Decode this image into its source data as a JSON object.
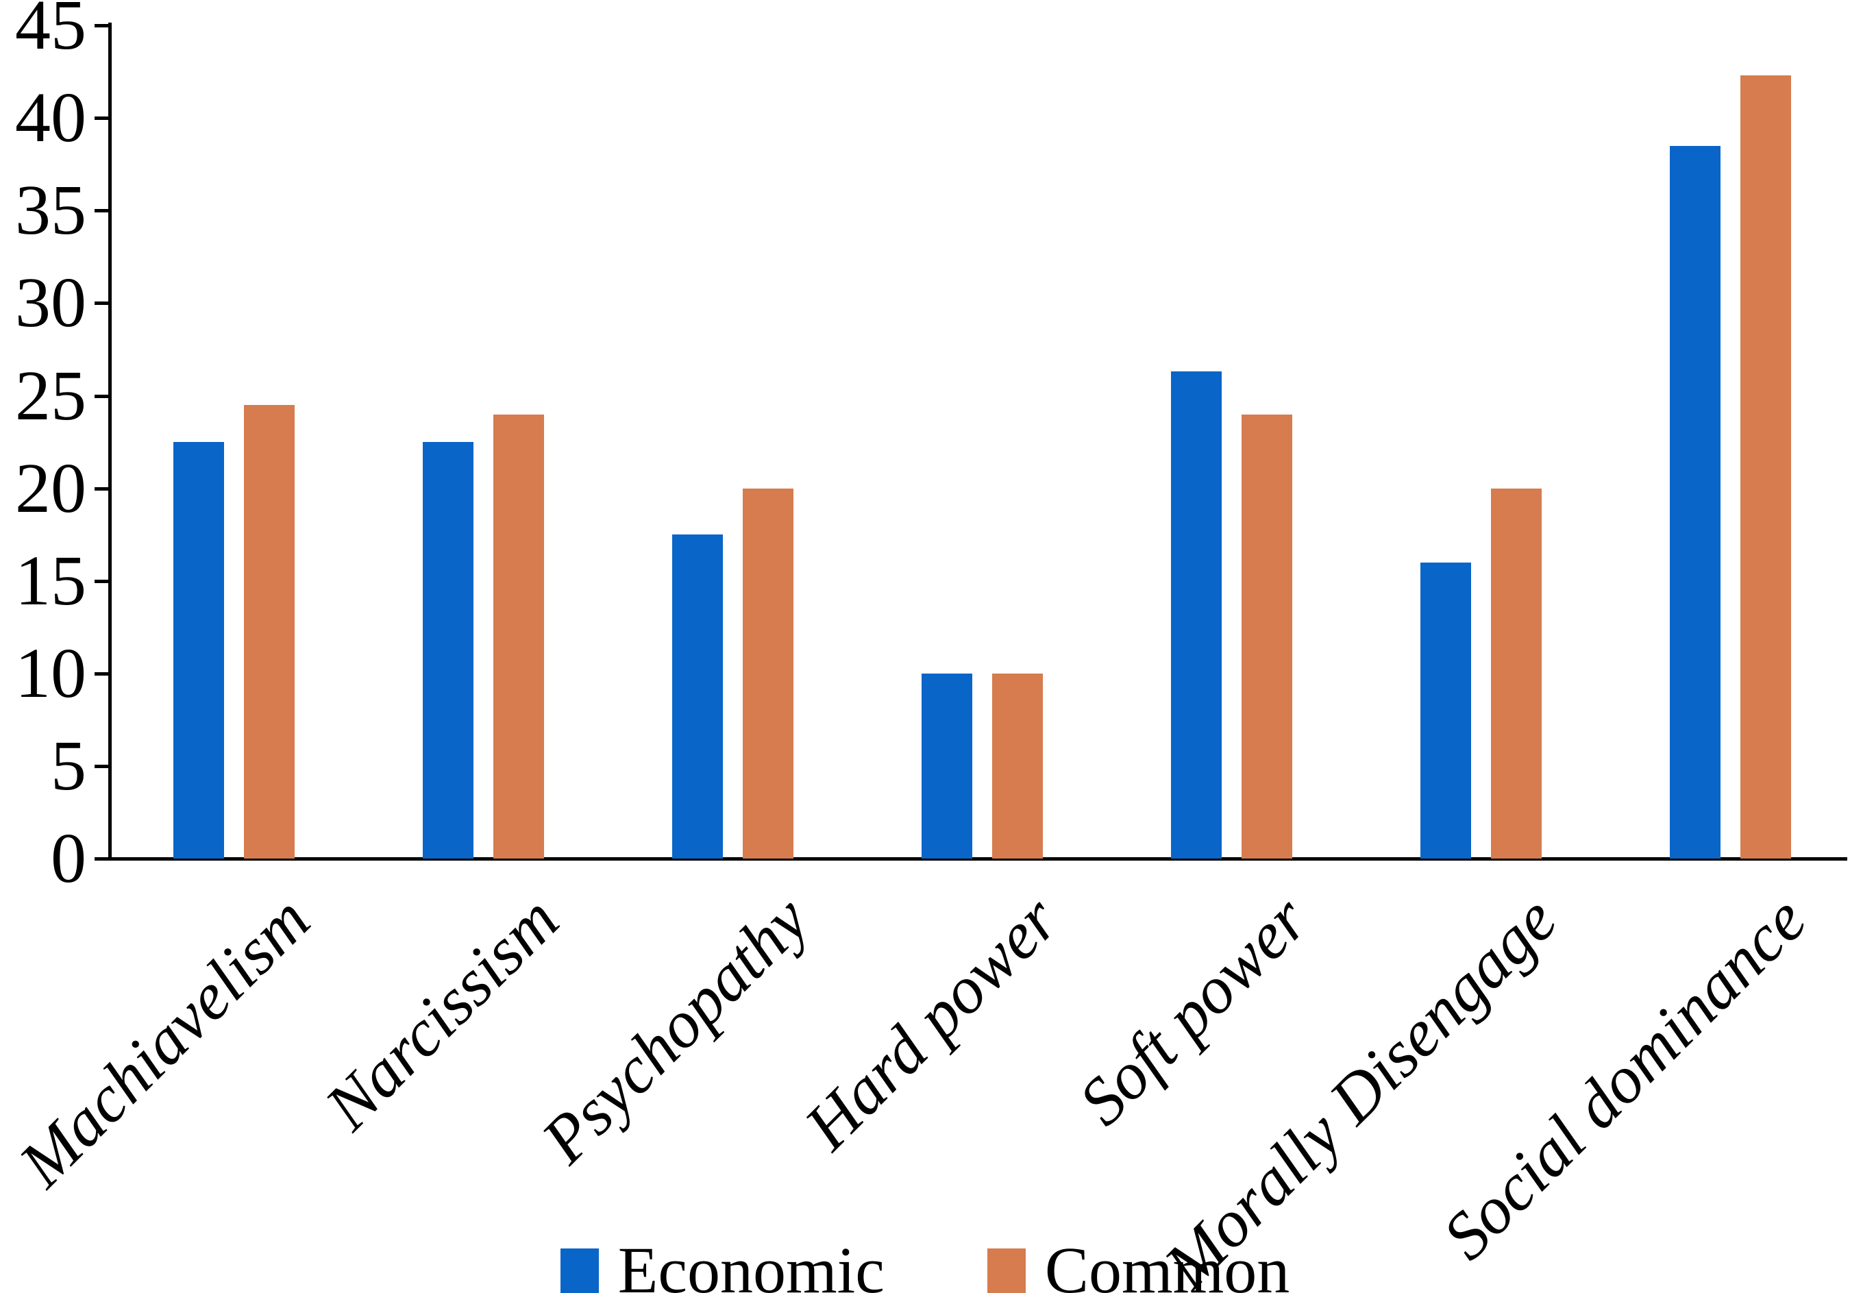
{
  "chart_data": {
    "type": "bar",
    "title": "",
    "xlabel": "",
    "ylabel": "",
    "categories": [
      "Machiavelism",
      "Narcissism",
      "Psychopathy",
      "Hard power",
      "Soft power",
      "Morally Disengage",
      "Social dominance"
    ],
    "series": [
      {
        "name": "Economic",
        "color": "#0a65c8",
        "values": [
          22.5,
          22.5,
          17.5,
          10,
          26.3,
          16,
          38.5
        ]
      },
      {
        "name": "Common",
        "color": "#d67c4e",
        "values": [
          24.5,
          24,
          20,
          10,
          24,
          20,
          42.3
        ]
      }
    ],
    "ylim": [
      0,
      45
    ],
    "yticks": [
      0,
      5,
      10,
      15,
      20,
      25,
      30,
      35,
      40,
      45
    ],
    "grid": false,
    "legend_position": "bottom",
    "axis_color": "#000000",
    "background_color": "#ffffff",
    "tick_label_color": "#000000"
  }
}
